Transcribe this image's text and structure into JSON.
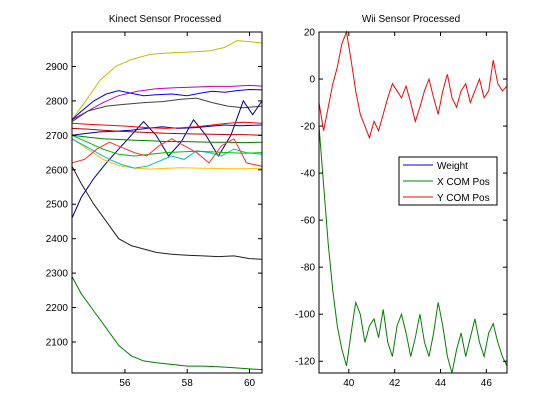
{
  "chart_data": [
    {
      "type": "line",
      "title": "Kinect Sensor Processed",
      "xlabel": "",
      "ylabel": "",
      "xlim": [
        54.3,
        60.4
      ],
      "ylim": [
        2010,
        3000
      ],
      "xticks": [
        56,
        58,
        60
      ],
      "yticks": [
        2100,
        2200,
        2300,
        2400,
        2500,
        2600,
        2700,
        2800,
        2900
      ],
      "grid": false,
      "series": [
        {
          "color": "#bfbf00",
          "x": [
            54.3,
            54.7,
            55.2,
            55.7,
            56.2,
            56.8,
            57.5,
            58.1,
            58.7,
            59.2,
            59.6,
            60.0,
            60.4
          ],
          "y": [
            2745,
            2795,
            2860,
            2900,
            2920,
            2935,
            2940,
            2942,
            2945,
            2955,
            2975,
            2972,
            2968
          ]
        },
        {
          "color": "#bf00bf",
          "x": [
            54.3,
            54.8,
            55.3,
            55.8,
            56.4,
            57.0,
            57.6,
            58.2,
            58.8,
            59.4,
            60.0,
            60.4
          ],
          "y": [
            2745,
            2770,
            2795,
            2815,
            2828,
            2835,
            2838,
            2840,
            2842,
            2842,
            2845,
            2843
          ]
        },
        {
          "color": "#0000ff",
          "x": [
            54.3,
            54.6,
            55.0,
            55.4,
            55.8,
            56.2,
            56.6,
            57.0,
            57.5,
            58.0,
            58.4,
            58.8,
            59.2,
            59.6,
            60.0,
            60.4
          ],
          "y": [
            2745,
            2770,
            2800,
            2820,
            2830,
            2822,
            2815,
            2818,
            2820,
            2815,
            2822,
            2828,
            2825,
            2830,
            2833,
            2832
          ]
        },
        {
          "color": "#404040",
          "x": [
            54.3,
            54.8,
            55.4,
            56.0,
            56.6,
            57.2,
            57.8,
            58.3,
            58.8,
            59.3,
            59.8,
            60.4
          ],
          "y": [
            2740,
            2770,
            2785,
            2790,
            2795,
            2798,
            2805,
            2808,
            2795,
            2785,
            2780,
            2785
          ]
        },
        {
          "color": "#00007f",
          "x": [
            54.3,
            54.6,
            55.0,
            55.4,
            55.8,
            56.2,
            56.6,
            57.0,
            57.4,
            57.8,
            58.2,
            58.6,
            59.0,
            59.4,
            59.8,
            60.1,
            60.4
          ],
          "y": [
            2460,
            2520,
            2575,
            2620,
            2660,
            2700,
            2740,
            2700,
            2640,
            2680,
            2745,
            2700,
            2640,
            2700,
            2800,
            2760,
            2800
          ]
        },
        {
          "color": "#0000bf",
          "x": [
            54.3,
            54.7,
            55.2,
            55.7,
            56.2,
            56.7,
            57.2,
            57.7,
            58.2,
            58.7,
            59.2,
            59.7,
            60.4
          ],
          "y": [
            2700,
            2705,
            2710,
            2712,
            2715,
            2720,
            2725,
            2720,
            2722,
            2726,
            2730,
            2728,
            2730
          ]
        },
        {
          "color": "#ff0000",
          "x": [
            54.3,
            54.8,
            55.3,
            55.8,
            56.3,
            56.8,
            57.3,
            57.8,
            58.3,
            58.8,
            59.3,
            59.8,
            60.4
          ],
          "y": [
            2735,
            2732,
            2730,
            2728,
            2725,
            2722,
            2720,
            2722,
            2725,
            2730,
            2735,
            2738,
            2735
          ]
        },
        {
          "color": "#bf0000",
          "x": [
            54.3,
            54.8,
            55.3,
            55.8,
            56.3,
            56.8,
            57.3,
            57.8,
            58.3,
            58.8,
            59.3,
            59.8,
            60.4
          ],
          "y": [
            2720,
            2718,
            2715,
            2712,
            2710,
            2708,
            2706,
            2705,
            2704,
            2703,
            2702,
            2702,
            2700
          ]
        },
        {
          "color": "#007f00",
          "x": [
            54.3,
            54.8,
            55.3,
            55.8,
            56.3,
            56.8,
            57.3,
            57.8,
            58.3,
            58.8,
            59.3,
            59.8,
            60.4
          ],
          "y": [
            2700,
            2695,
            2690,
            2688,
            2686,
            2684,
            2682,
            2682,
            2681,
            2680,
            2680,
            2679,
            2680
          ]
        },
        {
          "color": "#ffbf00",
          "x": [
            54.3,
            54.8,
            55.3,
            55.8,
            56.3,
            56.8,
            57.3,
            57.8,
            58.3,
            58.8,
            59.3,
            59.8,
            60.4
          ],
          "y": [
            2690,
            2660,
            2630,
            2612,
            2605,
            2602,
            2604,
            2606,
            2605,
            2604,
            2603,
            2603,
            2604
          ]
        },
        {
          "color": "#00bfbf",
          "x": [
            54.3,
            54.7,
            55.1,
            55.5,
            55.9,
            56.3,
            56.7,
            57.1,
            57.5,
            57.9,
            58.3,
            58.7,
            59.1,
            59.5,
            59.9,
            60.4
          ],
          "y": [
            2690,
            2670,
            2650,
            2630,
            2615,
            2605,
            2610,
            2625,
            2640,
            2630,
            2655,
            2650,
            2640,
            2660,
            2650,
            2645
          ]
        },
        {
          "color": "#00bf00",
          "x": [
            54.3,
            54.8,
            55.3,
            55.8,
            56.3,
            56.8,
            57.3,
            57.8,
            58.3,
            58.8,
            59.3,
            59.8,
            60.4
          ],
          "y": [
            2700,
            2680,
            2660,
            2645,
            2640,
            2645,
            2650,
            2652,
            2654,
            2652,
            2650,
            2648,
            2650
          ]
        },
        {
          "color": "#ff3030",
          "x": [
            54.3,
            54.7,
            55.1,
            55.5,
            55.9,
            56.3,
            56.7,
            57.1,
            57.5,
            57.9,
            58.3,
            58.7,
            59.1,
            59.5,
            59.9,
            60.4
          ],
          "y": [
            2620,
            2630,
            2660,
            2680,
            2665,
            2650,
            2640,
            2670,
            2690,
            2670,
            2650,
            2620,
            2670,
            2690,
            2620,
            2610
          ]
        },
        {
          "color": "#202020",
          "x": [
            54.3,
            54.6,
            55.0,
            55.4,
            55.8,
            56.2,
            56.6,
            57.0,
            57.5,
            58.0,
            58.5,
            59.0,
            59.5,
            60.0,
            60.4
          ],
          "y": [
            2610,
            2560,
            2500,
            2450,
            2400,
            2380,
            2370,
            2360,
            2355,
            2352,
            2350,
            2348,
            2350,
            2342,
            2340
          ]
        },
        {
          "color": "#007f00",
          "x": [
            54.3,
            54.6,
            55.0,
            55.4,
            55.8,
            56.2,
            56.6,
            57.0,
            57.5,
            58.0,
            58.5,
            59.0,
            59.5,
            60.0,
            60.4
          ],
          "y": [
            2290,
            2240,
            2190,
            2140,
            2090,
            2060,
            2045,
            2040,
            2035,
            2030,
            2030,
            2028,
            2025,
            2022,
            2020
          ]
        }
      ]
    },
    {
      "type": "line",
      "title": "Wii Sensor Processed",
      "xlabel": "",
      "ylabel": "",
      "xlim": [
        38.7,
        46.9
      ],
      "ylim": [
        -125,
        20
      ],
      "xticks": [
        40,
        42,
        44,
        46
      ],
      "yticks": [
        20,
        0,
        -20,
        -40,
        -60,
        -80,
        -100,
        -120
      ],
      "grid": false,
      "legend_position": "middle-right",
      "series": [
        {
          "name": "Weight",
          "color": "#0000ff",
          "x": [],
          "y": []
        },
        {
          "name": "X COM Pos",
          "color": "#008000",
          "x": [
            38.7,
            38.9,
            39.1,
            39.3,
            39.5,
            39.7,
            39.9,
            40.1,
            40.3,
            40.5,
            40.7,
            40.9,
            41.1,
            41.3,
            41.5,
            41.7,
            41.9,
            42.1,
            42.3,
            42.5,
            42.7,
            42.9,
            43.1,
            43.3,
            43.5,
            43.7,
            43.9,
            44.1,
            44.3,
            44.5,
            44.7,
            44.9,
            45.1,
            45.3,
            45.5,
            45.7,
            45.9,
            46.1,
            46.3,
            46.5,
            46.7,
            46.9
          ],
          "y": [
            -20,
            -45,
            -70,
            -90,
            -105,
            -115,
            -122,
            -108,
            -95,
            -100,
            -112,
            -105,
            -102,
            -110,
            -98,
            -112,
            -118,
            -105,
            -100,
            -108,
            -118,
            -110,
            -100,
            -112,
            -118,
            -108,
            -95,
            -105,
            -118,
            -125,
            -115,
            -108,
            -118,
            -110,
            -102,
            -112,
            -118,
            -108,
            -104,
            -112,
            -118,
            -122
          ]
        },
        {
          "name": "Y COM Pos",
          "color": "#ff0000",
          "x": [
            38.7,
            38.9,
            39.1,
            39.3,
            39.5,
            39.7,
            39.9,
            40.1,
            40.3,
            40.5,
            40.7,
            40.9,
            41.1,
            41.3,
            41.5,
            41.7,
            41.9,
            42.1,
            42.3,
            42.5,
            42.7,
            42.9,
            43.1,
            43.3,
            43.5,
            43.7,
            43.9,
            44.1,
            44.3,
            44.5,
            44.7,
            44.9,
            45.1,
            45.3,
            45.5,
            45.7,
            45.9,
            46.1,
            46.3,
            46.5,
            46.7,
            46.9
          ],
          "y": [
            -10,
            -22,
            -12,
            -2,
            5,
            15,
            20,
            8,
            -5,
            -15,
            -20,
            -25,
            -18,
            -22,
            -15,
            -8,
            -2,
            -5,
            -8,
            -3,
            -10,
            -18,
            -12,
            -5,
            0,
            -8,
            -15,
            -5,
            2,
            -8,
            -12,
            -5,
            -2,
            -10,
            -5,
            0,
            -8,
            -5,
            8,
            -2,
            -5,
            -3
          ]
        }
      ]
    }
  ]
}
